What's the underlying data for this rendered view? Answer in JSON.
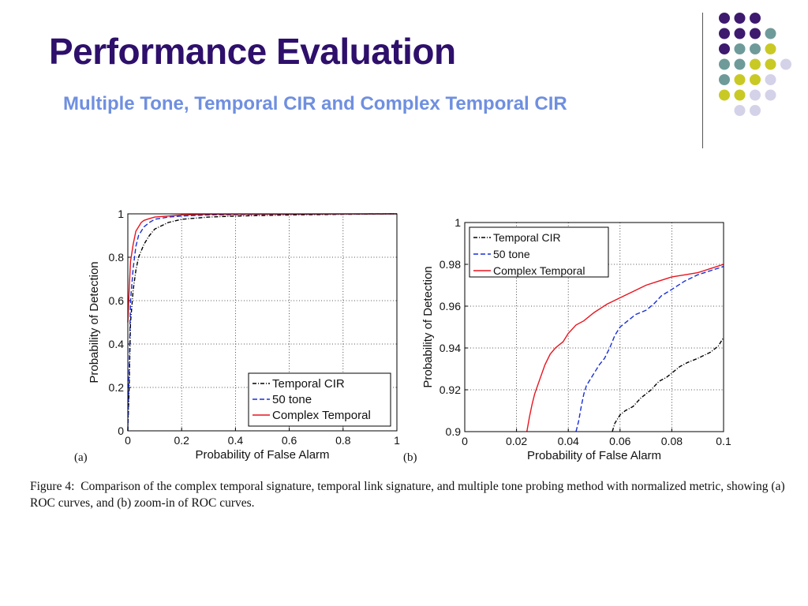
{
  "slide": {
    "title": "Performance Evaluation",
    "subtitle": "Multiple Tone, Temporal CIR and Complex Temporal CIR"
  },
  "decoration": {
    "palette": {
      "purple": "#3d1a6e",
      "teal": "#6f9a9a",
      "olive": "#c9c925",
      "lavender": "#d4d2e8"
    },
    "dot_grid": [
      [
        "purple",
        "purple",
        "purple"
      ],
      [
        "purple",
        "purple",
        "purple",
        "teal"
      ],
      [
        "purple",
        "teal",
        "teal",
        "olive"
      ],
      [
        "teal",
        "teal",
        "olive",
        "olive",
        "lavender"
      ],
      [
        "teal",
        "olive",
        "olive",
        "lavender"
      ],
      [
        "olive",
        "olive",
        "lavender",
        "lavender"
      ],
      [
        "lavender",
        "lavender"
      ]
    ]
  },
  "figure": {
    "panel_a_label": "(a)",
    "panel_b_label": "(b)",
    "caption_label": "Figure 4:",
    "caption_text": "Comparison of the complex temporal signature, temporal link signature, and multiple tone probing method with normalized metric, showing (a) ROC curves, and (b) zoom-in of ROC curves."
  },
  "chart_data": [
    {
      "type": "line",
      "xlabel": "Probability of False Alarm",
      "ylabel": "Probability of Detection",
      "xlim": [
        0,
        1
      ],
      "ylim": [
        0,
        1
      ],
      "xticks": [
        "0",
        "0.2",
        "0.4",
        "0.6",
        "0.8",
        "1"
      ],
      "yticks": [
        "0",
        "0.2",
        "0.4",
        "0.6",
        "0.8",
        "1"
      ],
      "grid": true,
      "legend_position": "bottom-right",
      "series": [
        {
          "name": "Temporal CIR",
          "color": "#000000",
          "style": "dashdot",
          "points": [
            [
              0.0,
              0.0
            ],
            [
              0.005,
              0.2
            ],
            [
              0.01,
              0.5
            ],
            [
              0.02,
              0.65
            ],
            [
              0.03,
              0.74
            ],
            [
              0.04,
              0.8
            ],
            [
              0.06,
              0.86
            ],
            [
              0.08,
              0.9
            ],
            [
              0.1,
              0.93
            ],
            [
              0.15,
              0.96
            ],
            [
              0.2,
              0.975
            ],
            [
              0.3,
              0.985
            ],
            [
              0.4,
              0.99
            ],
            [
              0.6,
              0.995
            ],
            [
              0.8,
              0.998
            ],
            [
              1.0,
              1.0
            ]
          ]
        },
        {
          "name": "50 tone",
          "color": "#1a2fd6",
          "style": "dashed",
          "points": [
            [
              0.0,
              0.0
            ],
            [
              0.005,
              0.3
            ],
            [
              0.01,
              0.6
            ],
            [
              0.02,
              0.75
            ],
            [
              0.03,
              0.85
            ],
            [
              0.04,
              0.9
            ],
            [
              0.06,
              0.94
            ],
            [
              0.08,
              0.96
            ],
            [
              0.1,
              0.975
            ],
            [
              0.15,
              0.985
            ],
            [
              0.2,
              0.99
            ],
            [
              0.3,
              0.995
            ],
            [
              0.5,
              0.998
            ],
            [
              1.0,
              1.0
            ]
          ]
        },
        {
          "name": "Complex Temporal",
          "color": "#e8141e",
          "style": "solid",
          "points": [
            [
              0.0,
              0.5
            ],
            [
              0.005,
              0.65
            ],
            [
              0.01,
              0.78
            ],
            [
              0.02,
              0.86
            ],
            [
              0.03,
              0.92
            ],
            [
              0.04,
              0.94
            ],
            [
              0.05,
              0.96
            ],
            [
              0.06,
              0.97
            ],
            [
              0.08,
              0.978
            ],
            [
              0.1,
              0.985
            ],
            [
              0.15,
              0.99
            ],
            [
              0.2,
              0.995
            ],
            [
              0.3,
              0.998
            ],
            [
              0.5,
              0.999
            ],
            [
              1.0,
              1.0
            ]
          ]
        }
      ]
    },
    {
      "type": "line",
      "xlabel": "Probability of False Alarm",
      "ylabel": "Probability of Detection",
      "xlim": [
        0,
        0.1
      ],
      "ylim": [
        0.9,
        1
      ],
      "xticks": [
        "0",
        "0.02",
        "0.04",
        "0.06",
        "0.08",
        "0.1"
      ],
      "yticks": [
        "0.9",
        "0.92",
        "0.94",
        "0.96",
        "0.98",
        "1"
      ],
      "grid": true,
      "legend_position": "top-left",
      "series": [
        {
          "name": "Temporal CIR",
          "color": "#000000",
          "style": "dashdot",
          "points": [
            [
              0.057,
              0.9
            ],
            [
              0.058,
              0.904
            ],
            [
              0.06,
              0.908
            ],
            [
              0.062,
              0.91
            ],
            [
              0.065,
              0.912
            ],
            [
              0.068,
              0.916
            ],
            [
              0.07,
              0.918
            ],
            [
              0.072,
              0.92
            ],
            [
              0.075,
              0.924
            ],
            [
              0.078,
              0.926
            ],
            [
              0.08,
              0.928
            ],
            [
              0.083,
              0.931
            ],
            [
              0.086,
              0.933
            ],
            [
              0.09,
              0.935
            ],
            [
              0.095,
              0.938
            ],
            [
              0.098,
              0.941
            ],
            [
              0.1,
              0.945
            ]
          ]
        },
        {
          "name": "50 tone",
          "color": "#1a2fd6",
          "style": "dashed",
          "points": [
            [
              0.043,
              0.9
            ],
            [
              0.044,
              0.905
            ],
            [
              0.045,
              0.912
            ],
            [
              0.046,
              0.918
            ],
            [
              0.047,
              0.922
            ],
            [
              0.05,
              0.928
            ],
            [
              0.052,
              0.932
            ],
            [
              0.054,
              0.935
            ],
            [
              0.056,
              0.94
            ],
            [
              0.058,
              0.946
            ],
            [
              0.06,
              0.95
            ],
            [
              0.063,
              0.953
            ],
            [
              0.066,
              0.956
            ],
            [
              0.07,
              0.958
            ],
            [
              0.073,
              0.961
            ],
            [
              0.076,
              0.965
            ],
            [
              0.08,
              0.968
            ],
            [
              0.085,
              0.972
            ],
            [
              0.09,
              0.975
            ],
            [
              0.095,
              0.977
            ],
            [
              0.1,
              0.979
            ]
          ]
        },
        {
          "name": "Complex Temporal",
          "color": "#e8141e",
          "style": "solid",
          "points": [
            [
              0.024,
              0.9
            ],
            [
              0.025,
              0.907
            ],
            [
              0.026,
              0.913
            ],
            [
              0.027,
              0.918
            ],
            [
              0.029,
              0.925
            ],
            [
              0.031,
              0.932
            ],
            [
              0.033,
              0.937
            ],
            [
              0.035,
              0.94
            ],
            [
              0.038,
              0.943
            ],
            [
              0.04,
              0.947
            ],
            [
              0.043,
              0.951
            ],
            [
              0.046,
              0.953
            ],
            [
              0.05,
              0.957
            ],
            [
              0.055,
              0.961
            ],
            [
              0.06,
              0.964
            ],
            [
              0.065,
              0.967
            ],
            [
              0.07,
              0.97
            ],
            [
              0.075,
              0.972
            ],
            [
              0.08,
              0.974
            ],
            [
              0.085,
              0.975
            ],
            [
              0.09,
              0.976
            ],
            [
              0.095,
              0.978
            ],
            [
              0.1,
              0.98
            ]
          ]
        }
      ]
    }
  ]
}
